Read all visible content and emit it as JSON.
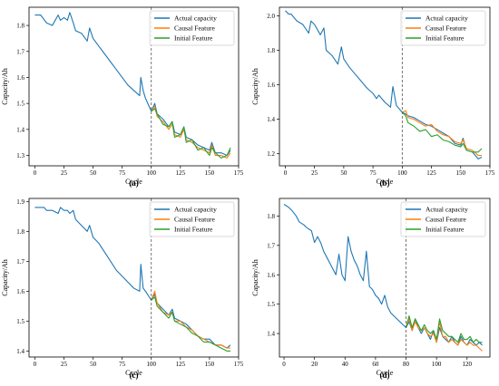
{
  "chart_data": [
    {
      "panel": "(a)",
      "type": "line",
      "xlabel": "Cycle",
      "ylabel": "Capacity/Ah",
      "xlim": [
        -5,
        175
      ],
      "ylim": [
        1.26,
        1.87
      ],
      "xticks": [
        0,
        25,
        50,
        75,
        100,
        125,
        150,
        175
      ],
      "yticks": [
        1.3,
        1.4,
        1.5,
        1.6,
        1.7,
        1.8
      ],
      "split_cycle": 100,
      "legend_position": "top-right",
      "series": [
        {
          "name": "Actual capacity",
          "color": "#1f77b4",
          "x": [
            0,
            5,
            10,
            15,
            20,
            22,
            25,
            28,
            30,
            33,
            35,
            40,
            45,
            47,
            50,
            55,
            60,
            65,
            70,
            75,
            80,
            85,
            90,
            91,
            93,
            95,
            100,
            103,
            105,
            110,
            115,
            118,
            120,
            125,
            128,
            130,
            135,
            140,
            145,
            150,
            152,
            155,
            160,
            165,
            168
          ],
          "y": [
            1.84,
            1.84,
            1.81,
            1.8,
            1.84,
            1.82,
            1.83,
            1.82,
            1.85,
            1.81,
            1.78,
            1.77,
            1.74,
            1.79,
            1.75,
            1.72,
            1.69,
            1.66,
            1.63,
            1.6,
            1.57,
            1.55,
            1.53,
            1.6,
            1.55,
            1.52,
            1.47,
            1.5,
            1.46,
            1.44,
            1.41,
            1.43,
            1.39,
            1.38,
            1.41,
            1.37,
            1.36,
            1.34,
            1.33,
            1.32,
            1.35,
            1.31,
            1.31,
            1.3,
            1.32
          ]
        },
        {
          "name": "Causal Feature",
          "color": "#ff7f0e",
          "x": [
            100,
            103,
            105,
            110,
            115,
            118,
            120,
            125,
            128,
            130,
            135,
            140,
            145,
            150,
            152,
            155,
            160,
            165,
            168
          ],
          "y": [
            1.47,
            1.49,
            1.45,
            1.43,
            1.4,
            1.42,
            1.38,
            1.37,
            1.4,
            1.36,
            1.35,
            1.33,
            1.32,
            1.31,
            1.34,
            1.3,
            1.3,
            1.29,
            1.31
          ]
        },
        {
          "name": "Initial Feature",
          "color": "#2ca02c",
          "x": [
            100,
            103,
            105,
            110,
            115,
            118,
            120,
            125,
            128,
            130,
            135,
            140,
            145,
            150,
            152,
            155,
            160,
            165,
            168
          ],
          "y": [
            1.47,
            1.48,
            1.46,
            1.42,
            1.41,
            1.43,
            1.37,
            1.38,
            1.41,
            1.35,
            1.36,
            1.32,
            1.33,
            1.3,
            1.33,
            1.31,
            1.29,
            1.3,
            1.33
          ]
        }
      ]
    },
    {
      "panel": "(b)",
      "type": "line",
      "xlabel": "Cycle",
      "ylabel": "Capacity/Ah",
      "xlim": [
        -5,
        175
      ],
      "ylim": [
        1.13,
        2.05
      ],
      "xticks": [
        0,
        25,
        50,
        75,
        100,
        125,
        150,
        175
      ],
      "yticks": [
        1.2,
        1.4,
        1.6,
        1.8,
        2.0
      ],
      "split_cycle": 100,
      "legend_position": "top-right",
      "series": [
        {
          "name": "Actual capacity",
          "color": "#1f77b4",
          "x": [
            0,
            3,
            5,
            10,
            15,
            20,
            22,
            25,
            30,
            33,
            35,
            40,
            45,
            48,
            50,
            55,
            60,
            65,
            70,
            75,
            78,
            80,
            85,
            90,
            92,
            95,
            100,
            103,
            105,
            110,
            115,
            120,
            125,
            130,
            135,
            140,
            145,
            150,
            152,
            155,
            160,
            165,
            168
          ],
          "y": [
            2.03,
            2.01,
            2.01,
            1.97,
            1.95,
            1.9,
            1.97,
            1.95,
            1.89,
            1.93,
            1.8,
            1.77,
            1.72,
            1.82,
            1.75,
            1.7,
            1.66,
            1.62,
            1.58,
            1.55,
            1.52,
            1.54,
            1.5,
            1.47,
            1.59,
            1.48,
            1.44,
            1.43,
            1.42,
            1.41,
            1.39,
            1.37,
            1.36,
            1.34,
            1.32,
            1.3,
            1.26,
            1.25,
            1.29,
            1.22,
            1.21,
            1.17,
            1.18
          ]
        },
        {
          "name": "Causal Feature",
          "color": "#ff7f0e",
          "x": [
            100,
            103,
            105,
            110,
            115,
            120,
            125,
            130,
            135,
            140,
            145,
            150,
            152,
            155,
            160,
            165,
            168
          ],
          "y": [
            1.44,
            1.45,
            1.41,
            1.4,
            1.38,
            1.36,
            1.37,
            1.33,
            1.31,
            1.3,
            1.27,
            1.26,
            1.28,
            1.23,
            1.22,
            1.19,
            1.19
          ]
        },
        {
          "name": "Initial Feature",
          "color": "#2ca02c",
          "x": [
            100,
            103,
            105,
            110,
            115,
            120,
            125,
            130,
            135,
            140,
            145,
            150,
            152,
            155,
            160,
            165,
            168
          ],
          "y": [
            1.44,
            1.42,
            1.38,
            1.36,
            1.33,
            1.34,
            1.3,
            1.31,
            1.28,
            1.27,
            1.25,
            1.24,
            1.26,
            1.22,
            1.21,
            1.21,
            1.23
          ]
        }
      ]
    },
    {
      "panel": "(c)",
      "type": "line",
      "xlabel": "Cycle",
      "ylabel": "Capacity/Ah",
      "xlim": [
        -5,
        175
      ],
      "ylim": [
        1.38,
        1.91
      ],
      "xticks": [
        0,
        25,
        50,
        75,
        100,
        125,
        150,
        175
      ],
      "yticks": [
        1.4,
        1.5,
        1.6,
        1.7,
        1.8,
        1.9
      ],
      "split_cycle": 100,
      "legend_position": "top-right",
      "series": [
        {
          "name": "Actual capacity",
          "color": "#1f77b4",
          "x": [
            0,
            5,
            8,
            10,
            15,
            20,
            22,
            25,
            28,
            30,
            33,
            35,
            40,
            45,
            47,
            50,
            55,
            60,
            65,
            70,
            75,
            80,
            85,
            90,
            91,
            93,
            95,
            100,
            103,
            105,
            110,
            115,
            118,
            120,
            125,
            130,
            135,
            140,
            145,
            150,
            155,
            160,
            165,
            168
          ],
          "y": [
            1.88,
            1.88,
            1.88,
            1.87,
            1.87,
            1.86,
            1.88,
            1.87,
            1.87,
            1.86,
            1.87,
            1.84,
            1.82,
            1.8,
            1.82,
            1.78,
            1.76,
            1.73,
            1.7,
            1.67,
            1.65,
            1.63,
            1.61,
            1.6,
            1.69,
            1.61,
            1.6,
            1.57,
            1.59,
            1.56,
            1.54,
            1.52,
            1.54,
            1.51,
            1.5,
            1.49,
            1.47,
            1.45,
            1.44,
            1.44,
            1.42,
            1.42,
            1.41,
            1.42
          ]
        },
        {
          "name": "Causal Feature",
          "color": "#ff7f0e",
          "x": [
            100,
            103,
            105,
            110,
            115,
            118,
            120,
            125,
            130,
            135,
            140,
            145,
            150,
            155,
            160,
            165,
            168
          ],
          "y": [
            1.57,
            1.6,
            1.56,
            1.53,
            1.52,
            1.53,
            1.5,
            1.5,
            1.48,
            1.47,
            1.45,
            1.44,
            1.43,
            1.42,
            1.42,
            1.41,
            1.41
          ]
        },
        {
          "name": "Initial Feature",
          "color": "#2ca02c",
          "x": [
            100,
            103,
            105,
            110,
            115,
            118,
            120,
            125,
            130,
            135,
            140,
            145,
            150,
            155,
            160,
            165,
            168
          ],
          "y": [
            1.57,
            1.58,
            1.55,
            1.53,
            1.51,
            1.53,
            1.5,
            1.49,
            1.48,
            1.46,
            1.45,
            1.43,
            1.43,
            1.42,
            1.41,
            1.4,
            1.4
          ]
        }
      ]
    },
    {
      "panel": "(d)",
      "type": "line",
      "xlabel": "Cycle",
      "ylabel": "Capacity/Ah",
      "xlim": [
        -3,
        135
      ],
      "ylim": [
        1.32,
        1.86
      ],
      "xticks": [
        0,
        20,
        40,
        60,
        80,
        100,
        120
      ],
      "yticks": [
        1.4,
        1.5,
        1.6,
        1.7,
        1.8
      ],
      "split_cycle": 80,
      "legend_position": "top-right",
      "series": [
        {
          "name": "Actual capacity",
          "color": "#1f77b4",
          "x": [
            0,
            3,
            5,
            8,
            10,
            13,
            15,
            18,
            20,
            22,
            24,
            26,
            28,
            30,
            32,
            34,
            36,
            38,
            40,
            42,
            44,
            46,
            48,
            50,
            52,
            54,
            56,
            58,
            60,
            62,
            64,
            66,
            68,
            70,
            72,
            74,
            76,
            78,
            80,
            82,
            84,
            86,
            88,
            90,
            92,
            94,
            96,
            98,
            100,
            102,
            104,
            106,
            108,
            110,
            112,
            114,
            116,
            118,
            120,
            122,
            124,
            126,
            128,
            130
          ],
          "y": [
            1.84,
            1.83,
            1.82,
            1.8,
            1.78,
            1.77,
            1.76,
            1.75,
            1.71,
            1.73,
            1.71,
            1.68,
            1.66,
            1.64,
            1.62,
            1.6,
            1.67,
            1.6,
            1.58,
            1.73,
            1.68,
            1.65,
            1.63,
            1.6,
            1.58,
            1.68,
            1.56,
            1.55,
            1.53,
            1.52,
            1.5,
            1.53,
            1.49,
            1.47,
            1.46,
            1.45,
            1.44,
            1.43,
            1.42,
            1.44,
            1.41,
            1.45,
            1.42,
            1.4,
            1.42,
            1.4,
            1.38,
            1.41,
            1.37,
            1.42,
            1.39,
            1.38,
            1.37,
            1.39,
            1.37,
            1.36,
            1.39,
            1.37,
            1.36,
            1.38,
            1.37,
            1.36,
            1.37,
            1.36
          ]
        },
        {
          "name": "Causal Feature",
          "color": "#ff7f0e",
          "x": [
            80,
            82,
            84,
            86,
            88,
            90,
            92,
            94,
            96,
            98,
            100,
            102,
            104,
            106,
            108,
            110,
            112,
            114,
            116,
            118,
            120,
            122,
            124,
            126,
            128,
            130
          ],
          "y": [
            1.42,
            1.45,
            1.41,
            1.44,
            1.42,
            1.41,
            1.42,
            1.4,
            1.39,
            1.4,
            1.37,
            1.44,
            1.39,
            1.39,
            1.37,
            1.38,
            1.37,
            1.36,
            1.38,
            1.37,
            1.36,
            1.37,
            1.36,
            1.36,
            1.35,
            1.34
          ]
        },
        {
          "name": "Initial Feature",
          "color": "#2ca02c",
          "x": [
            80,
            82,
            84,
            86,
            88,
            90,
            92,
            94,
            96,
            98,
            100,
            102,
            104,
            106,
            108,
            110,
            112,
            114,
            116,
            118,
            120,
            122,
            124,
            126,
            128,
            130
          ],
          "y": [
            1.42,
            1.46,
            1.42,
            1.45,
            1.43,
            1.41,
            1.43,
            1.41,
            1.4,
            1.41,
            1.38,
            1.45,
            1.41,
            1.4,
            1.39,
            1.39,
            1.38,
            1.37,
            1.4,
            1.38,
            1.38,
            1.39,
            1.37,
            1.38,
            1.37,
            1.37
          ]
        }
      ]
    }
  ]
}
